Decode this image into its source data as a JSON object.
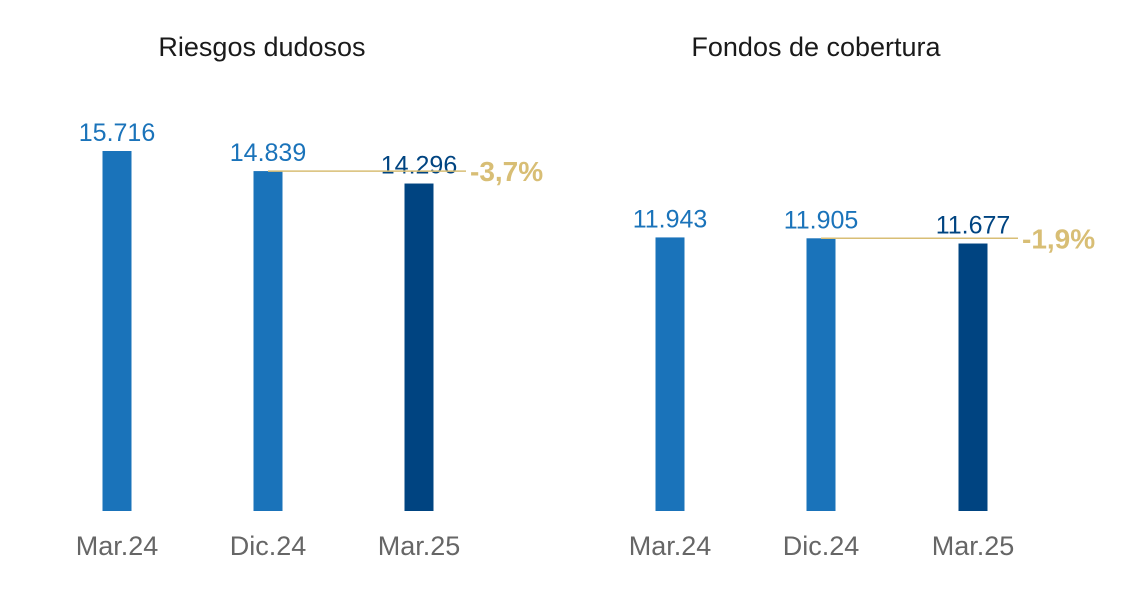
{
  "colors": {
    "bar": "#1a73ba",
    "bar_last": "#004481",
    "value": "#1a73ba",
    "value_last": "#004481",
    "change": "#d8be75",
    "change_line": "#d8be75"
  },
  "chart_data": [
    {
      "type": "bar",
      "title": "Riesgos dudosos",
      "categories": [
        "Mar.24",
        "Dic.24",
        "Mar.25"
      ],
      "values": [
        15716,
        14839,
        14296
      ],
      "data_labels": [
        "15.716",
        "14.839",
        "14.296"
      ],
      "change_label": "-3,7%",
      "ylim": [
        0,
        16000
      ],
      "grid": false,
      "legend": "none"
    },
    {
      "type": "bar",
      "title": "Fondos de cobertura",
      "categories": [
        "Mar.24",
        "Dic.24",
        "Mar.25"
      ],
      "values": [
        11943,
        11905,
        11677
      ],
      "data_labels": [
        "11.943",
        "11.905",
        "11.677"
      ],
      "change_label": "-1,9%",
      "ylim": [
        0,
        16000
      ],
      "grid": false,
      "legend": "none"
    }
  ]
}
